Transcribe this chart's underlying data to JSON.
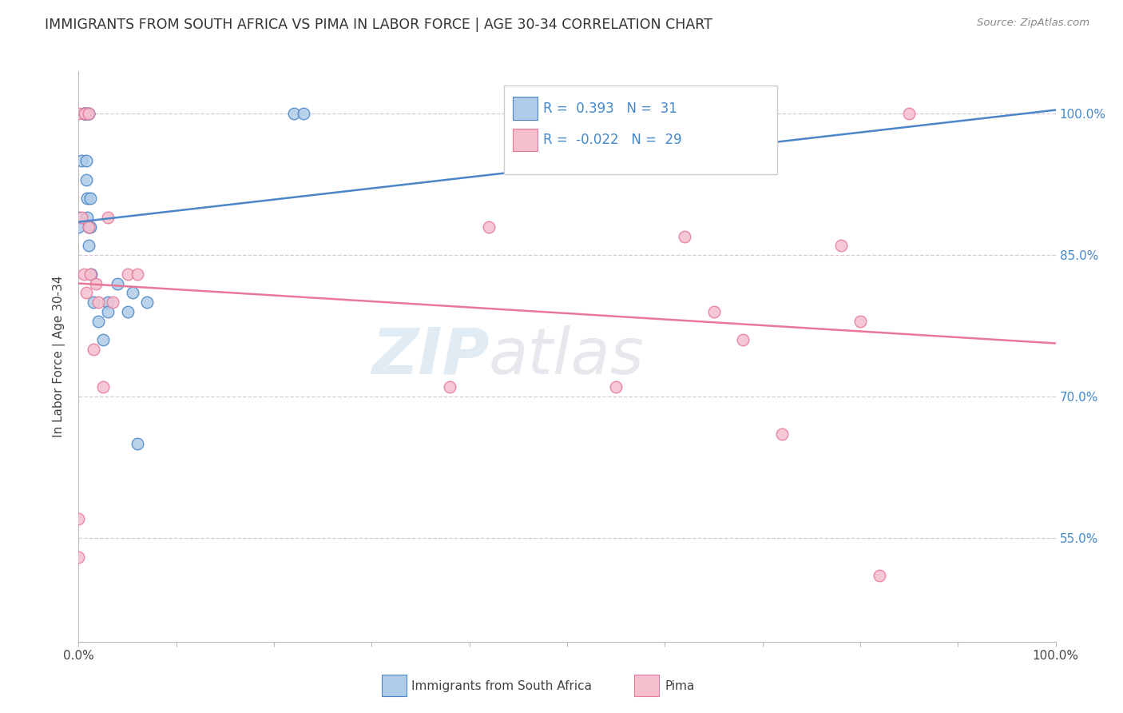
{
  "title": "IMMIGRANTS FROM SOUTH AFRICA VS PIMA IN LABOR FORCE | AGE 30-34 CORRELATION CHART",
  "source": "Source: ZipAtlas.com",
  "ylabel": "In Labor Force | Age 30-34",
  "ytick_labels": [
    "100.0%",
    "85.0%",
    "70.0%",
    "55.0%"
  ],
  "ytick_values": [
    1.0,
    0.85,
    0.7,
    0.55
  ],
  "xlim": [
    0.0,
    1.0
  ],
  "ylim": [
    0.44,
    1.045
  ],
  "blue_R": 0.393,
  "blue_N": 31,
  "pink_R": -0.022,
  "pink_N": 29,
  "blue_color": "#aecce8",
  "pink_color": "#f5bfce",
  "blue_line_color": "#4a86c8",
  "pink_line_color": "#e87898",
  "legend_blue_label": "Immigrants from South Africa",
  "legend_pink_label": "Pima",
  "watermark_zip": "ZIP",
  "watermark_atlas": "atlas",
  "blue_scatter_x": [
    0.0,
    0.0,
    0.003,
    0.005,
    0.005,
    0.006,
    0.007,
    0.007,
    0.008,
    0.008,
    0.009,
    0.009,
    0.01,
    0.01,
    0.01,
    0.01,
    0.012,
    0.012,
    0.013,
    0.015,
    0.02,
    0.025,
    0.03,
    0.03,
    0.04,
    0.05,
    0.055,
    0.06,
    0.07,
    0.22,
    0.23
  ],
  "blue_scatter_y": [
    0.89,
    0.88,
    0.95,
    1.0,
    1.0,
    1.0,
    1.0,
    1.0,
    0.95,
    0.93,
    0.91,
    0.89,
    1.0,
    1.0,
    0.88,
    0.86,
    0.91,
    0.88,
    0.83,
    0.8,
    0.78,
    0.76,
    0.8,
    0.79,
    0.82,
    0.79,
    0.81,
    0.65,
    0.8,
    1.0,
    1.0
  ],
  "pink_scatter_x": [
    0.0,
    0.0,
    0.0,
    0.003,
    0.005,
    0.006,
    0.008,
    0.01,
    0.01,
    0.012,
    0.015,
    0.018,
    0.02,
    0.025,
    0.03,
    0.035,
    0.05,
    0.06,
    0.38,
    0.42,
    0.55,
    0.62,
    0.65,
    0.68,
    0.72,
    0.78,
    0.8,
    0.82,
    0.85
  ],
  "pink_scatter_y": [
    0.57,
    0.53,
    1.0,
    0.89,
    0.83,
    1.0,
    0.81,
    1.0,
    0.88,
    0.83,
    0.75,
    0.82,
    0.8,
    0.71,
    0.89,
    0.8,
    0.83,
    0.83,
    0.71,
    0.88,
    0.71,
    0.87,
    0.79,
    0.76,
    0.66,
    0.86,
    0.78,
    0.51,
    1.0
  ],
  "grid_color": "#ddc8d8",
  "bg_color": "#ffffff",
  "title_color": "#333333",
  "axis_label_color": "#444444",
  "right_axis_color": "#4488cc",
  "source_color": "#888888"
}
